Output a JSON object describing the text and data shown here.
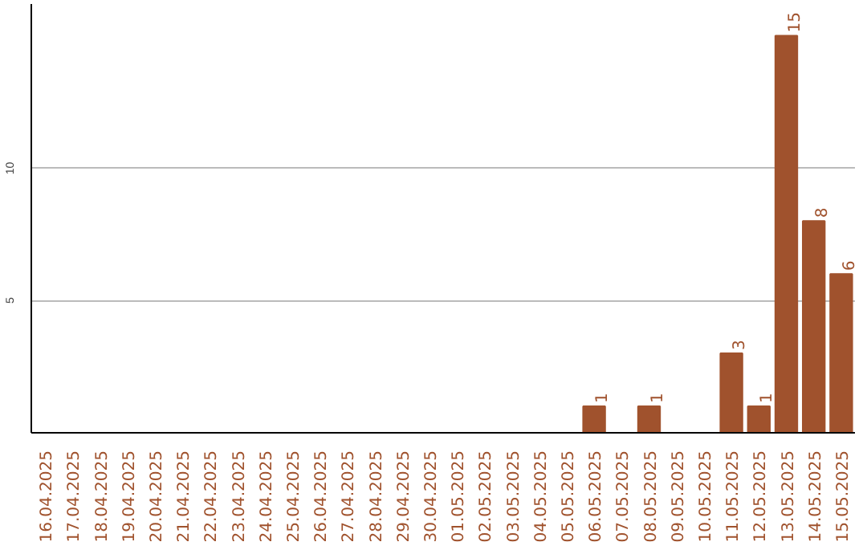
{
  "chart_data": {
    "type": "bar",
    "categories": [
      "16.04.2025",
      "17.04.2025",
      "18.04.2025",
      "19.04.2025",
      "20.04.2025",
      "21.04.2025",
      "22.04.2025",
      "23.04.2025",
      "24.04.2025",
      "25.04.2025",
      "26.04.2025",
      "27.04.2025",
      "28.04.2025",
      "29.04.2025",
      "30.04.2025",
      "01.05.2025",
      "02.05.2025",
      "03.05.2025",
      "04.05.2025",
      "05.05.2025",
      "06.05.2025",
      "07.05.2025",
      "08.05.2025",
      "09.05.2025",
      "10.05.2025",
      "11.05.2025",
      "12.05.2025",
      "13.05.2025",
      "14.05.2025",
      "15.05.2025"
    ],
    "values": [
      0,
      0,
      0,
      0,
      0,
      0,
      0,
      0,
      0,
      0,
      0,
      0,
      0,
      0,
      0,
      0,
      0,
      0,
      0,
      0,
      1,
      0,
      1,
      0,
      0,
      3,
      1,
      15,
      8,
      6
    ],
    "value_labels": [
      null,
      null,
      null,
      null,
      null,
      null,
      null,
      null,
      null,
      null,
      null,
      null,
      null,
      null,
      null,
      null,
      null,
      null,
      null,
      null,
      "1",
      null,
      "1",
      null,
      null,
      "3",
      "1",
      "15",
      "8",
      "6"
    ],
    "color": "#a0522d",
    "ylim": [
      0,
      16.2
    ],
    "yticks": [
      5,
      10
    ],
    "grid": "y"
  }
}
